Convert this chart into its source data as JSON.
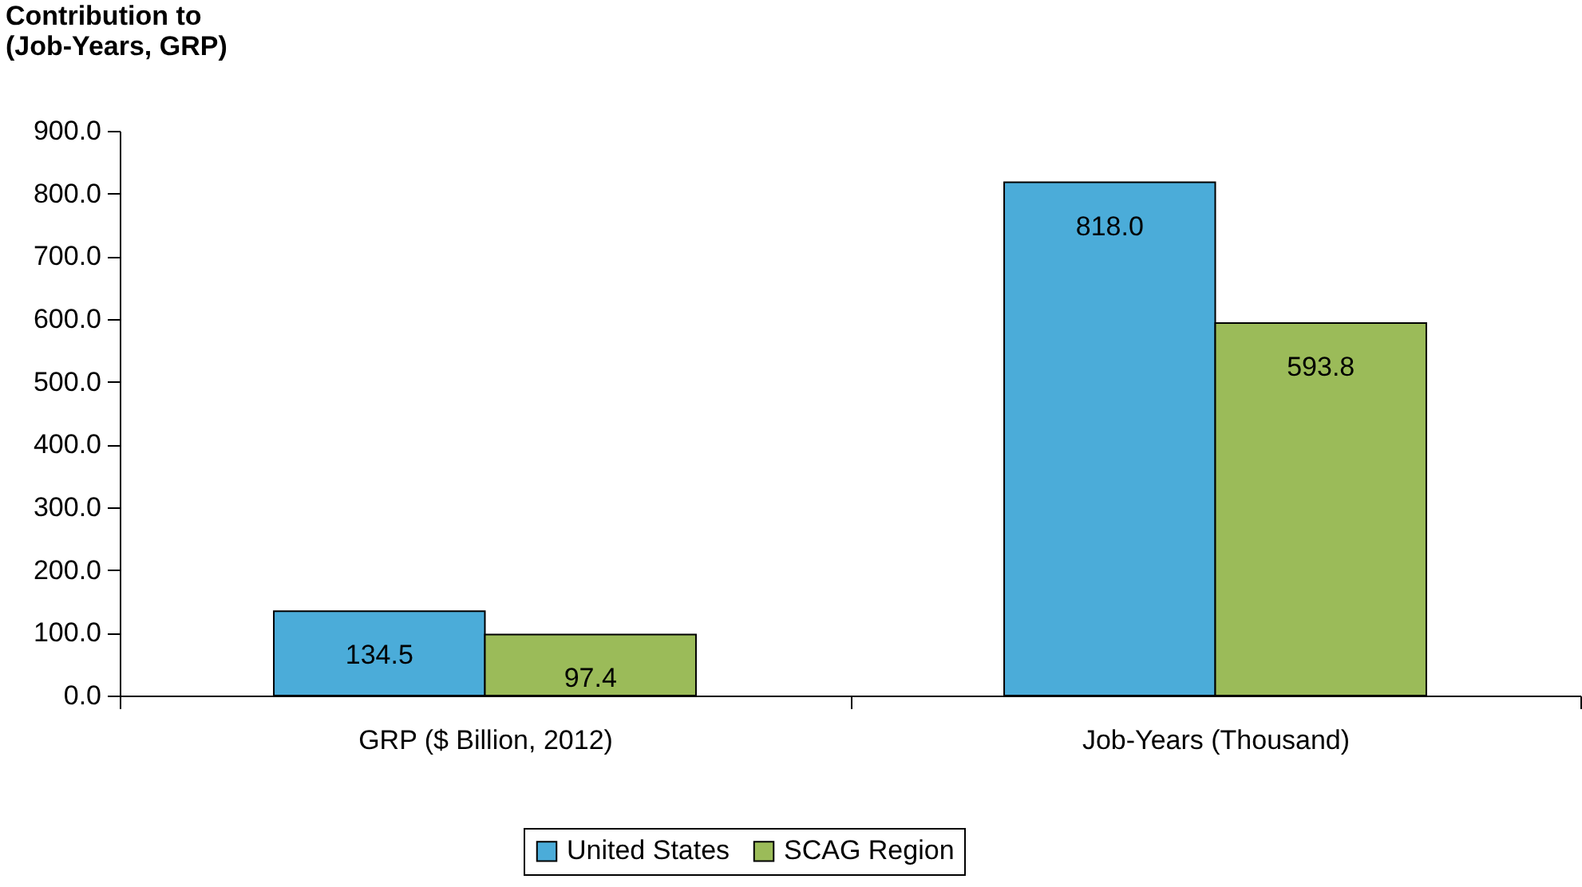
{
  "chart_data": {
    "type": "bar",
    "ylabel": "Contribution to\n(Job-Years, GRP)",
    "categories": [
      "GRP ($ Billion, 2012)",
      "Job-Years (Thousand)"
    ],
    "series": [
      {
        "name": "United States",
        "color": "#4bacd9",
        "values": [
          134.5,
          818.0
        ],
        "value_labels": [
          "134.5",
          "818.0"
        ]
      },
      {
        "name": "SCAG Region",
        "color": "#9bbb59",
        "values": [
          97.4,
          593.8
        ],
        "value_labels": [
          "97.4",
          "593.8"
        ]
      }
    ],
    "ylim": [
      0,
      900
    ],
    "yticks": [
      {
        "value": 0,
        "label": "0.0"
      },
      {
        "value": 100,
        "label": "100.0"
      },
      {
        "value": 200,
        "label": "200.0"
      },
      {
        "value": 300,
        "label": "300.0"
      },
      {
        "value": 400,
        "label": "400.0"
      },
      {
        "value": 500,
        "label": "500.0"
      },
      {
        "value": 600,
        "label": "600.0"
      },
      {
        "value": 700,
        "label": "700.0"
      },
      {
        "value": 800,
        "label": "800.0"
      },
      {
        "value": 900,
        "label": "900.0"
      }
    ],
    "legend": "bottom",
    "grid": false
  }
}
